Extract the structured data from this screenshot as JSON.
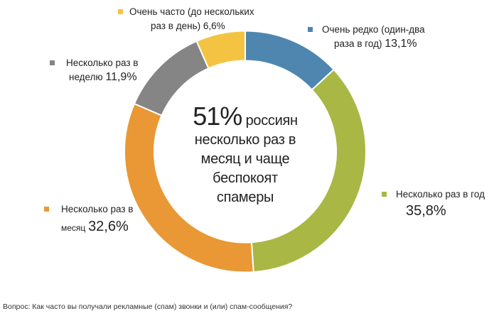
{
  "chart_data": {
    "type": "pie",
    "subtype": "donut",
    "title": "",
    "center_annotation": {
      "highlight": "51%",
      "text_lines": [
        "россиян",
        "несколько раз в",
        "месяц и чаще",
        "беспокоят",
        "спамеры"
      ]
    },
    "categories": [
      "Очень редко (один-два раза в год)",
      "Несколько раз в год",
      "Несколько раз в месяц",
      "Несколько раз в неделю",
      "Очень часто (до нескольких раз в день)"
    ],
    "values": [
      13.1,
      35.8,
      32.6,
      11.9,
      6.6
    ],
    "colors": [
      "#4F86B0",
      "#A9B745",
      "#E99835",
      "#858585",
      "#F5C342"
    ],
    "start_angle": "12 o'clock",
    "direction": "clockwise",
    "footnote": "Вопрос: Как часто вы получали рекламные (спам) звонки и (или) спам-сообщения?"
  },
  "labels": {
    "rare": {
      "line1": "Очень редко (один-два",
      "line2": "раза в год)",
      "pct": "13,1%"
    },
    "yearly": {
      "line1": "Несколько раз в год",
      "pct": "35,8%"
    },
    "monthly": {
      "line1": "Несколько раз в",
      "line2": "месяц",
      "pct": "32,6%"
    },
    "weekly": {
      "line1": "Несколько раз в",
      "line2": "неделю",
      "pct": "11,9%"
    },
    "daily": {
      "line1": "Очень часто (до нескольких",
      "line2": "раз в день)",
      "pct": "6,6%"
    }
  },
  "center": {
    "big": "51%",
    "rest1": "россиян",
    "line2": "несколько раз в",
    "line3": "месяц и чаще",
    "line4": "беспокоят",
    "line5": "спамеры"
  },
  "footer": "Вопрос: Как часто вы получали рекламные (спам) звонки и (или) спам-сообщения?"
}
